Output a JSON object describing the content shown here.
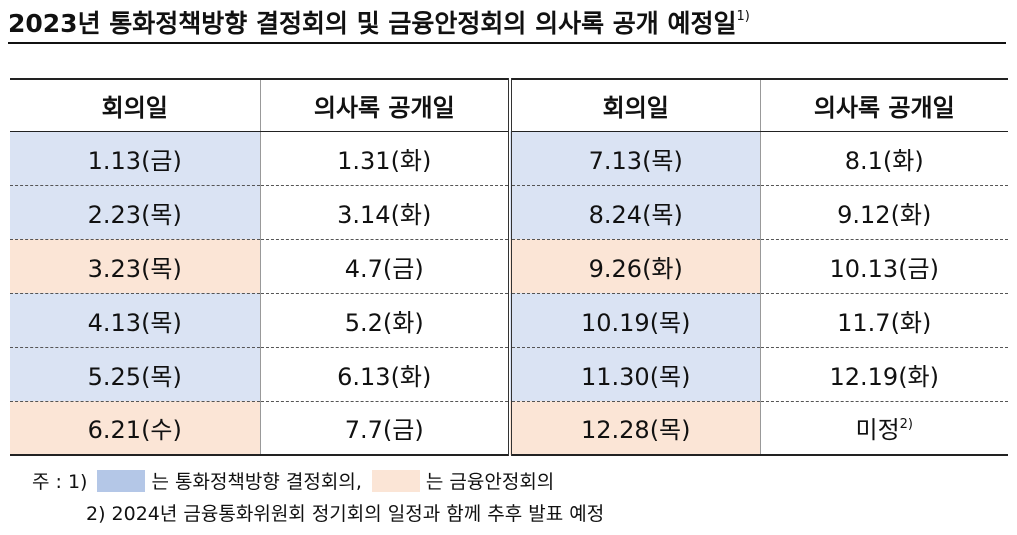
{
  "title": {
    "text": "2023년 통화정책방향 결정회의 및 금융안정회의 의사록 공개 예정일",
    "footnote_mark": "1)"
  },
  "table": {
    "headers": [
      "회의일",
      "의사록 공개일",
      "회의일",
      "의사록 공개일"
    ],
    "rows": [
      {
        "left_meeting": "1.13(금)",
        "left_release": "1.31(화)",
        "left_type": "mpc",
        "right_meeting": "7.13(목)",
        "right_release": "8.1(화)",
        "right_type": "mpc",
        "right_release_note": ""
      },
      {
        "left_meeting": "2.23(목)",
        "left_release": "3.14(화)",
        "left_type": "mpc",
        "right_meeting": "8.24(목)",
        "right_release": "9.12(화)",
        "right_type": "mpc",
        "right_release_note": ""
      },
      {
        "left_meeting": "3.23(목)",
        "left_release": "4.7(금)",
        "left_type": "fsc",
        "right_meeting": "9.26(화)",
        "right_release": "10.13(금)",
        "right_type": "fsc",
        "right_release_note": ""
      },
      {
        "left_meeting": "4.13(목)",
        "left_release": "5.2(화)",
        "left_type": "mpc",
        "right_meeting": "10.19(목)",
        "right_release": "11.7(화)",
        "right_type": "mpc",
        "right_release_note": ""
      },
      {
        "left_meeting": "5.25(목)",
        "left_release": "6.13(화)",
        "left_type": "mpc",
        "right_meeting": "11.30(목)",
        "right_release": "12.19(화)",
        "right_type": "mpc",
        "right_release_note": ""
      },
      {
        "left_meeting": "6.21(수)",
        "left_release": "7.7(금)",
        "left_type": "fsc",
        "right_meeting": "12.28(목)",
        "right_release": "미정",
        "right_type": "fsc",
        "right_release_note": "2)"
      }
    ]
  },
  "legend_colors": {
    "mpc": "#dae3f3",
    "fsc": "#fbe5d6",
    "mpc_swatch": "#b4c7e7",
    "fsc_swatch": "#fbe5d6"
  },
  "notes": {
    "prefix": "주 : 1)",
    "mpc_label": "는 통화정책방향 결정회의,",
    "fsc_label": "는 금융안정회의",
    "line2": "2) 2024년 금융통화위원회 정기회의 일정과 함께 추후 발표 예정"
  }
}
